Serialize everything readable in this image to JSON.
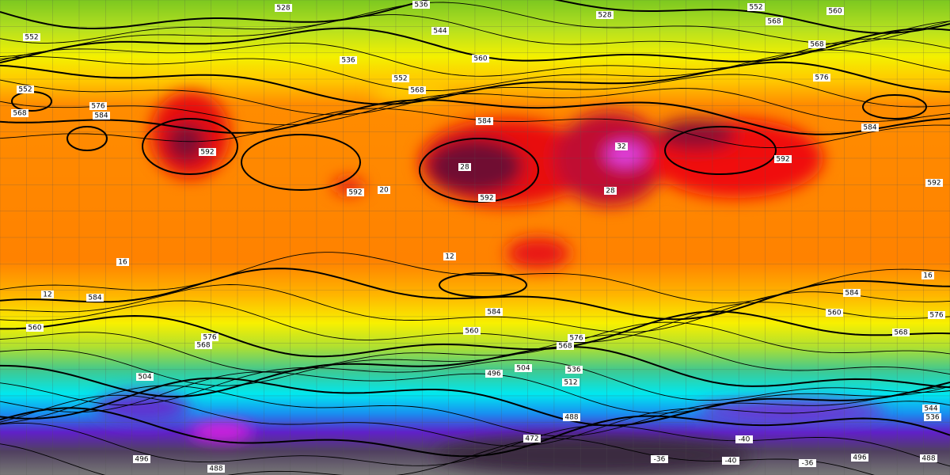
{
  "map": {
    "height_labels": [
      "528",
      "536",
      "528",
      "552",
      "560",
      "544",
      "552",
      "568",
      "568",
      "536",
      "560",
      "552",
      "576",
      "552",
      "568",
      "576",
      "568",
      "584",
      "584",
      "584",
      "592",
      "592",
      "592",
      "592",
      "592",
      "584",
      "584",
      "584",
      "576",
      "576",
      "576",
      "568",
      "568",
      "560",
      "560",
      "568",
      "560",
      "504",
      "496",
      "504",
      "512",
      "536",
      "488",
      "496",
      "488",
      "472",
      "496",
      "488",
      "544",
      "536"
    ],
    "temperature_labels": [
      "16",
      "12",
      "20",
      "28",
      "32",
      "28",
      "12",
      "16",
      "-36",
      "-40",
      "-36",
      "-40"
    ]
  }
}
